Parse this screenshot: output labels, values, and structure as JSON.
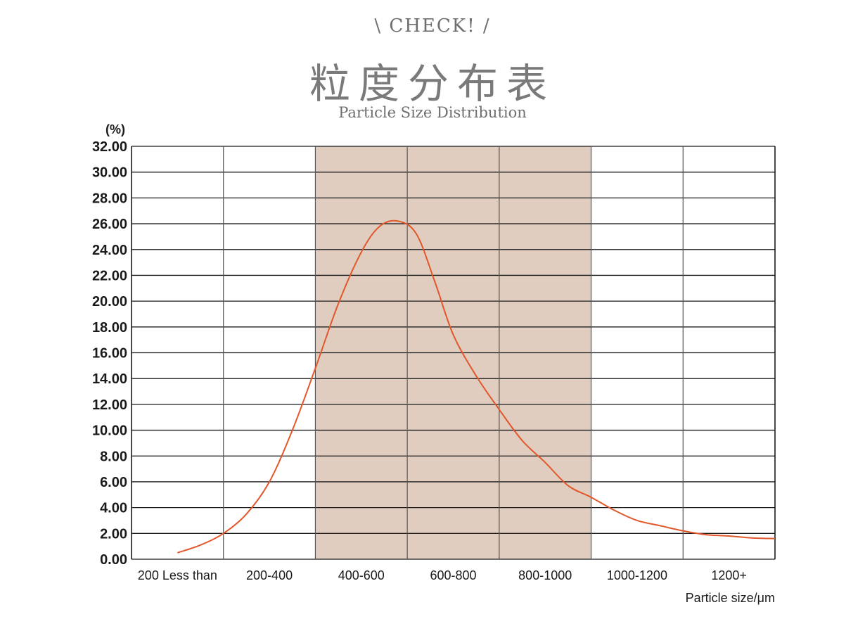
{
  "header": {
    "check": "\\ CHECK! /",
    "title": "粒度分布表",
    "subtitle": "Particle Size Distribution"
  },
  "chart_data": {
    "type": "line",
    "title": "粒度分布表",
    "subtitle": "Particle Size Distribution",
    "ylabel": "(%)",
    "xlabel": "Particle size/μm",
    "ylim": [
      0,
      32
    ],
    "yticks": [
      "0.00",
      "2.00",
      "4.00",
      "6.00",
      "8.00",
      "10.00",
      "12.00",
      "14.00",
      "16.00",
      "18.00",
      "20.00",
      "22.00",
      "24.00",
      "26.00",
      "28.00",
      "30.00",
      "32.00"
    ],
    "categories": [
      "200 Less than",
      "200-400",
      "400-600",
      "600-800",
      "800-1000",
      "1000-1200",
      "1200+"
    ],
    "highlighted_categories": [
      "400-600",
      "600-800",
      "800-1000"
    ],
    "highlight_color": "#e0cdc0",
    "line_color": "#e2572a",
    "grid": true,
    "series": [
      {
        "x": [
          0.5,
          0.75,
          1.0,
          1.25,
          1.5,
          1.75,
          2.0,
          2.25,
          2.5,
          2.7,
          2.9,
          3.1,
          3.3,
          3.5,
          3.75,
          4.0,
          4.25,
          4.5,
          4.75,
          5.0,
          5.25,
          5.5,
          5.75,
          6.0,
          6.25,
          6.5,
          6.75,
          7.0
        ],
        "values": [
          0.5,
          1.1,
          2.0,
          3.5,
          6.0,
          10.0,
          14.8,
          19.8,
          23.8,
          25.8,
          26.2,
          25.2,
          21.5,
          17.4,
          14.2,
          11.6,
          9.2,
          7.5,
          5.7,
          4.8,
          3.8,
          3.0,
          2.6,
          2.2,
          1.9,
          1.8,
          1.65,
          1.6
        ]
      }
    ]
  }
}
